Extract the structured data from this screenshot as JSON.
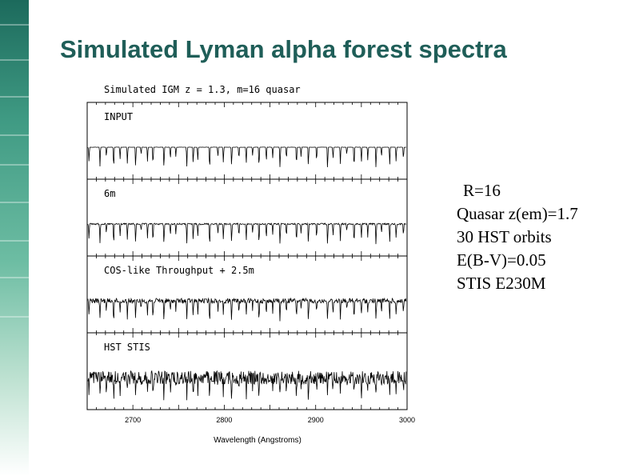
{
  "slide": {
    "title": "Simulated Lyman alpha forest spectra",
    "params": [
      "R=16",
      "Quasar  z(em)=1.7",
      "30 HST orbits",
      "E(B-V)=0.05",
      "STIS  E230M"
    ]
  },
  "colors": {
    "title": "#1f5e58",
    "stripe": "#3f9a83"
  },
  "chart_data": {
    "type": "line",
    "title": "Simulated IGM  z = 1.3,  m=16 quasar",
    "xlabel": "Wavelength (Angstroms)",
    "xlim": [
      2650,
      3000
    ],
    "xticks": [
      2700,
      2800,
      2900,
      3000
    ],
    "grid": false,
    "panels": [
      {
        "label": "INPUT",
        "noise": 0.005
      },
      {
        "label": "6m",
        "noise": 0.03
      },
      {
        "label": "COS-like Throughput + 2.5m",
        "noise": 0.1
      },
      {
        "label": "HST STIS",
        "noise": 0.28
      }
    ],
    "absorption_lines_x": [
      2652,
      2664,
      2671,
      2679,
      2686,
      2694,
      2703,
      2709,
      2716,
      2722,
      2734,
      2741,
      2747,
      2759,
      2766,
      2771,
      2784,
      2793,
      2799,
      2808,
      2816,
      2824,
      2831,
      2838,
      2846,
      2853,
      2861,
      2868,
      2879,
      2884,
      2892,
      2901,
      2913,
      2919,
      2927,
      2934,
      2942,
      2950,
      2957,
      2966,
      2972,
      2981,
      2988,
      2996
    ],
    "absorption_depths": [
      0.6,
      0.8,
      0.4,
      0.9,
      0.5,
      0.7,
      0.85,
      0.3,
      0.6,
      0.75,
      0.9,
      0.5,
      0.4,
      0.8,
      0.7,
      0.55,
      0.95,
      0.4,
      0.65,
      0.8,
      0.5,
      0.7,
      0.35,
      0.85,
      0.6,
      0.45,
      0.9,
      0.5,
      0.75,
      0.4,
      0.8,
      0.6,
      0.95,
      0.5,
      0.7,
      0.3,
      0.85,
      0.65,
      0.55,
      0.9,
      0.4,
      0.75,
      0.6,
      0.5
    ]
  }
}
